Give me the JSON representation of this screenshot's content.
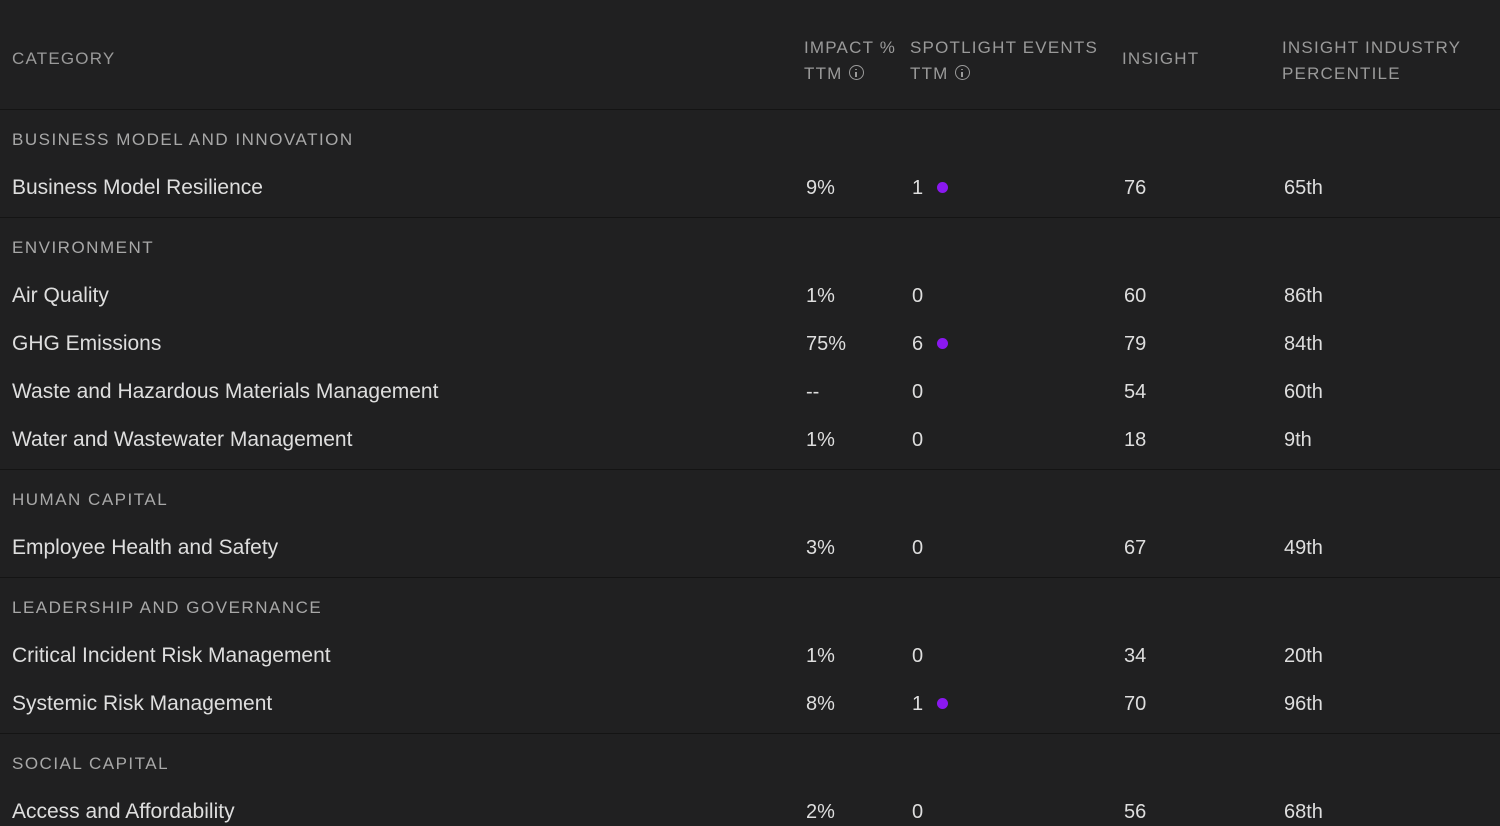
{
  "colors": {
    "background": "#202021",
    "divider": "#141414",
    "header_text": "#9a9a9a",
    "group_text": "#a8a8a8",
    "row_text": "#dedede",
    "spotlight_dot": "#8a18f0"
  },
  "header": {
    "category": "CATEGORY",
    "impact_line1": "IMPACT %",
    "impact_line2": "TTM",
    "spotlight_line1": "SPOTLIGHT EVENTS",
    "spotlight_line2": "TTM",
    "insight": "INSIGHT",
    "percentile_line1": "INSIGHT INDUSTRY",
    "percentile_line2": "PERCENTILE",
    "info_icon": "info-icon"
  },
  "groups": [
    {
      "title": "BUSINESS MODEL AND INNOVATION",
      "rows": [
        {
          "name": "Business Model Resilience",
          "impact": "9%",
          "spotlight": "1",
          "has_dot": true,
          "insight": "76",
          "percentile": "65th"
        }
      ]
    },
    {
      "title": "ENVIRONMENT",
      "rows": [
        {
          "name": "Air Quality",
          "impact": "1%",
          "spotlight": "0",
          "has_dot": false,
          "insight": "60",
          "percentile": "86th"
        },
        {
          "name": "GHG Emissions",
          "impact": "75%",
          "spotlight": "6",
          "has_dot": true,
          "insight": "79",
          "percentile": "84th"
        },
        {
          "name": "Waste and Hazardous Materials Management",
          "impact": "--",
          "spotlight": "0",
          "has_dot": false,
          "insight": "54",
          "percentile": "60th"
        },
        {
          "name": "Water and Wastewater Management",
          "impact": "1%",
          "spotlight": "0",
          "has_dot": false,
          "insight": "18",
          "percentile": "9th"
        }
      ]
    },
    {
      "title": "HUMAN CAPITAL",
      "rows": [
        {
          "name": "Employee Health and Safety",
          "impact": "3%",
          "spotlight": "0",
          "has_dot": false,
          "insight": "67",
          "percentile": "49th"
        }
      ]
    },
    {
      "title": "LEADERSHIP AND GOVERNANCE",
      "rows": [
        {
          "name": "Critical Incident Risk Management",
          "impact": "1%",
          "spotlight": "0",
          "has_dot": false,
          "insight": "34",
          "percentile": "20th"
        },
        {
          "name": "Systemic Risk Management",
          "impact": "8%",
          "spotlight": "1",
          "has_dot": true,
          "insight": "70",
          "percentile": "96th"
        }
      ]
    },
    {
      "title": "SOCIAL CAPITAL",
      "rows": [
        {
          "name": "Access and Affordability",
          "impact": "2%",
          "spotlight": "0",
          "has_dot": false,
          "insight": "56",
          "percentile": "68th"
        }
      ]
    }
  ]
}
